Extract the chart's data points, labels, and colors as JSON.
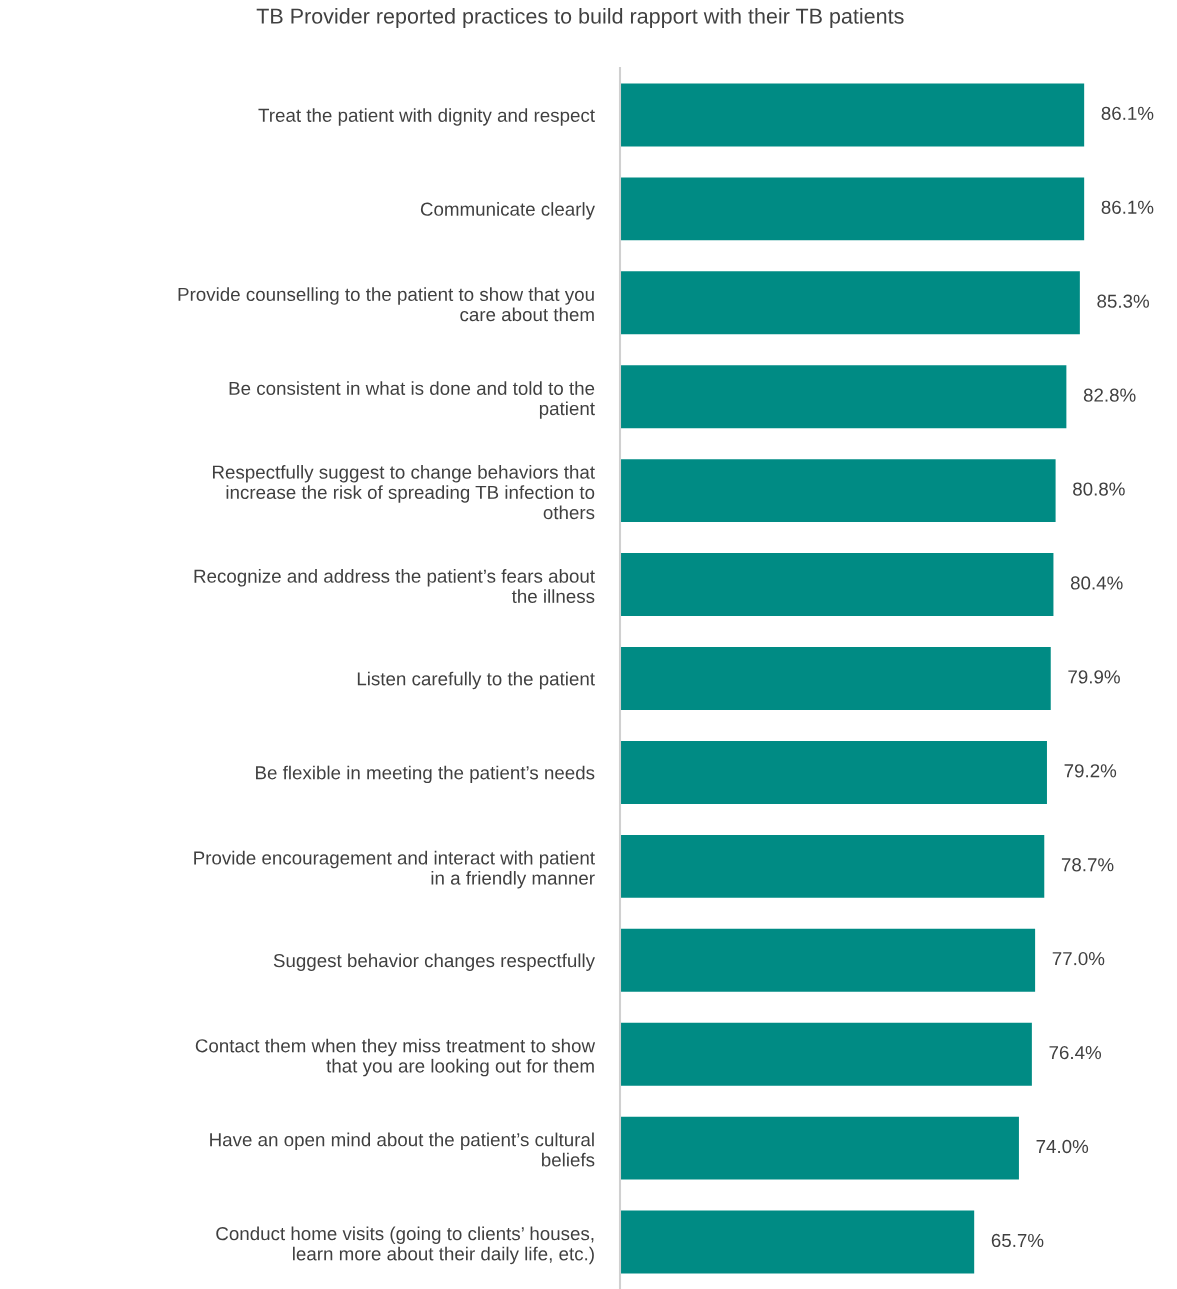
{
  "chart_data": {
    "type": "bar",
    "orientation": "horizontal",
    "title": "TB Provider reported practices to build rapport with their TB patients",
    "categories": [
      "Treat the patient with dignity and respect",
      "Communicate clearly",
      "Provide counselling to the patient to show that you\ncare about them",
      "Be consistent in what is done and told to the\npatient",
      "Respectfully suggest to change behaviors that\nincrease the risk of spreading TB infection to\nothers",
      "Recognize and address the patient’s fears about\nthe illness",
      "Listen carefully to the patient",
      "Be flexible in meeting the patient’s needs",
      "Provide encouragement and interact with patient\nin a friendly manner",
      "Suggest behavior changes respectfully",
      "Contact them when they miss treatment to show\nthat you are looking out for them",
      "Have an open mind about the patient’s cultural\nbeliefs",
      "Conduct home visits (going to clients’ houses,\nlearn more about their daily life, etc.)"
    ],
    "values": [
      86.1,
      86.1,
      85.3,
      82.8,
      80.8,
      80.4,
      79.9,
      79.2,
      78.7,
      77.0,
      76.4,
      74.0,
      65.7
    ],
    "value_labels": [
      "86.1%",
      "86.1%",
      "85.3%",
      "82.8%",
      "80.8%",
      "80.4%",
      "79.9%",
      "79.2%",
      "78.7%",
      "77.0%",
      "76.4%",
      "74.0%",
      "65.7%"
    ],
    "color": "#008b84",
    "grid": false,
    "legend": false
  }
}
